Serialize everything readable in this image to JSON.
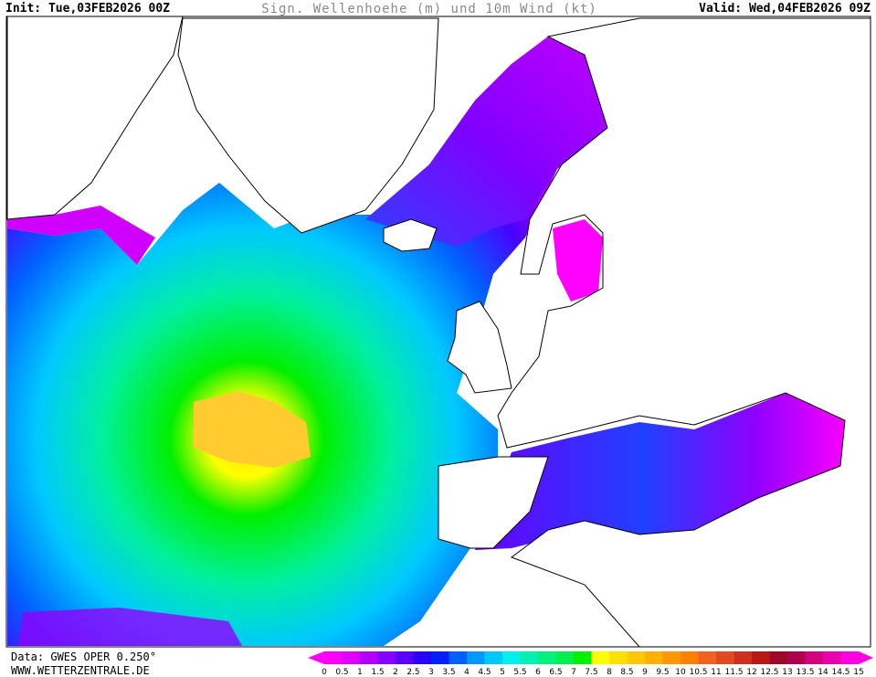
{
  "header": {
    "init": "Init: Tue,03FEB2026 00Z",
    "title": "Sign. Wellenhoehe (m) und 10m Wind (kt)",
    "valid": "Valid: Wed,04FEB2026 09Z"
  },
  "footer": {
    "data": "Data: GWES OPER 0.250°",
    "website": "WWW.WETTERZENTRALE.DE"
  },
  "colorbar": {
    "labels": [
      0,
      0.5,
      1,
      1.5,
      2,
      2.5,
      3,
      3.5,
      4,
      4.5,
      5,
      5.5,
      6,
      6.5,
      7,
      7.5,
      8,
      8.5,
      9,
      9.5,
      10,
      10.5,
      11,
      11.5,
      12,
      12.5,
      13,
      13.5,
      14,
      14.5,
      15
    ],
    "colors": [
      "#ff00ff",
      "#e000ff",
      "#b400ff",
      "#8800ff",
      "#5a00ff",
      "#2a00ff",
      "#0020ff",
      "#0060ff",
      "#0098ff",
      "#00c8ff",
      "#00f0f0",
      "#00f0b0",
      "#00f080",
      "#00f050",
      "#00f000",
      "#ffff00",
      "#ffe000",
      "#ffc800",
      "#ffb000",
      "#ff9800",
      "#ff8000",
      "#f06020",
      "#e04a20",
      "#d03020",
      "#b81818",
      "#a00828",
      "#b00050",
      "#d00080",
      "#e800b0",
      "#ff00e0"
    ]
  }
}
